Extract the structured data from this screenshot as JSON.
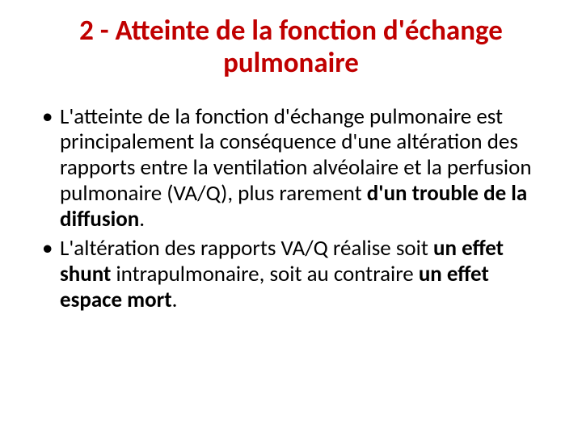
{
  "slide": {
    "title_color": "#c00000",
    "title_fontsize": 35,
    "body_color": "#000000",
    "body_fontsize": 27,
    "title_line1": "2  -  Atteinte de la fonction d'échange",
    "title_line2": "pulmonaire",
    "bullet1_prefix": "L'atteinte de la fonction d'échange pulmonaire est principalement la conséquence d'une altération des rapports entre la ventilation alvéolaire et la perfusion pulmonaire (VA/Q), plus rarement ",
    "bullet1_bold": "d'un trouble de la diffusion",
    "bullet1_suffix": ".",
    "bullet2_prefix": "L'altération des rapports VA/Q réalise soit ",
    "bullet2_bold1": "un effet shunt",
    "bullet2_mid": " intrapulmonaire, soit au contraire ",
    "bullet2_bold2": "un effet espace mort",
    "bullet2_suffix": "."
  }
}
